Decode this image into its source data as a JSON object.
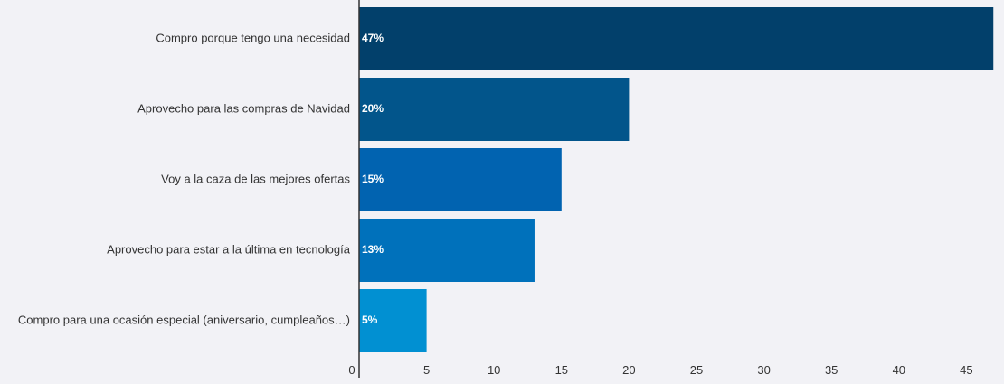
{
  "chart_data": {
    "type": "bar",
    "orientation": "horizontal",
    "title": "",
    "xlabel": "",
    "ylabel": "",
    "categories": [
      "Compro porque tengo una necesidad",
      "Aprovecho para las compras de Navidad",
      "Voy a la caza de las mejores ofertas",
      "Aprovecho para estar a la última en tecnología",
      "Compro para una ocasión especial (aniversario, cumpleaños…)"
    ],
    "values": [
      47,
      20,
      15,
      13,
      5
    ],
    "data_labels": [
      "47%",
      "20%",
      "15%",
      "13%",
      "5%"
    ],
    "colors": [
      "#02406b",
      "#02558b",
      "#0163b0",
      "#0071bb",
      "#0190d2"
    ],
    "xlim": [
      0,
      47
    ],
    "xticks": [
      0,
      5,
      10,
      15,
      20,
      25,
      30,
      35,
      40,
      45
    ],
    "grid": false,
    "legend": "none"
  }
}
